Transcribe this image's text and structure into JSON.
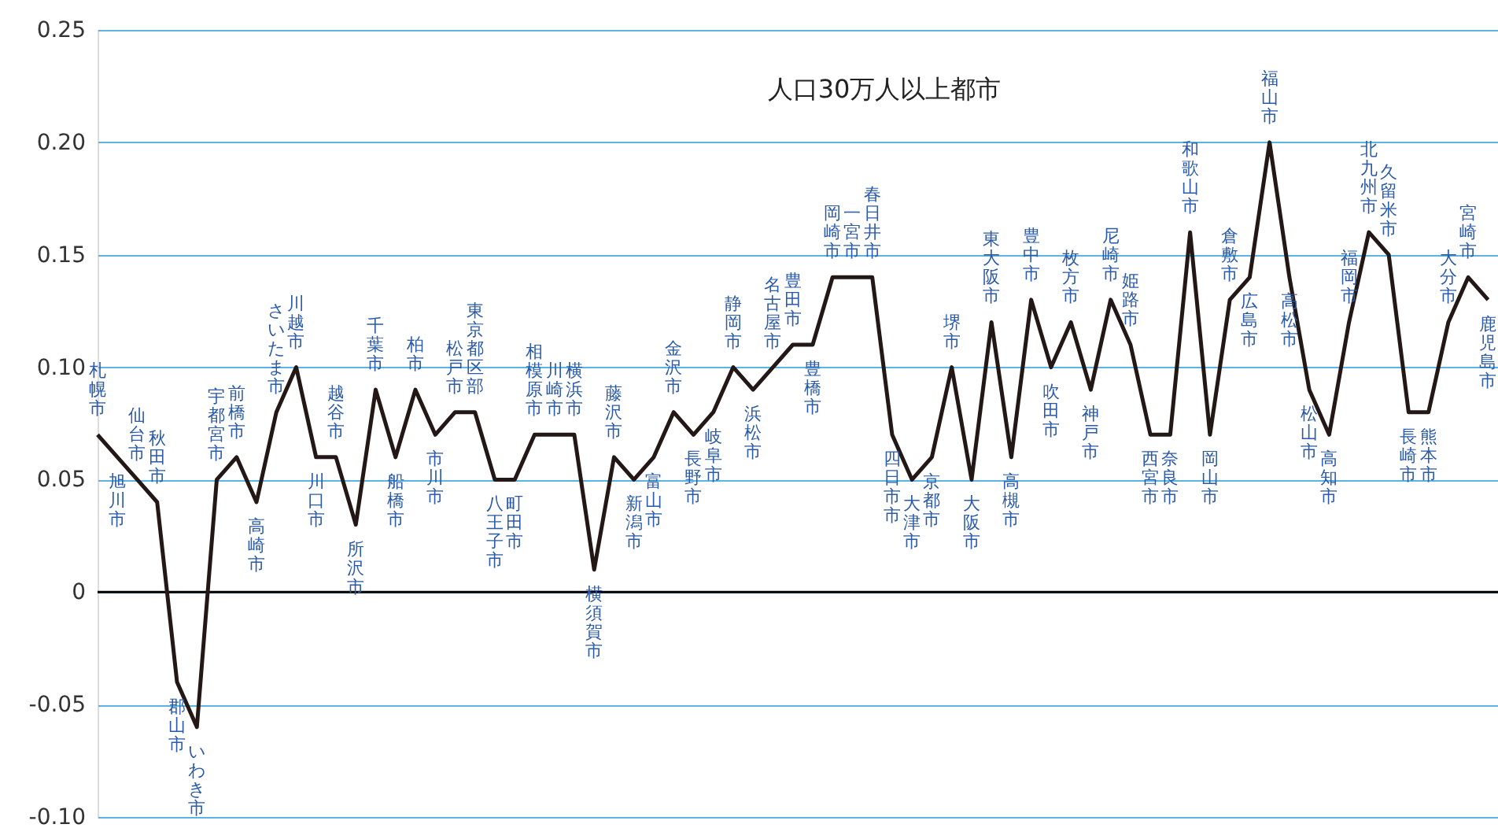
{
  "chart_data": {
    "type": "line",
    "title": "人口30万人以上都市",
    "categories": [
      "札幌市",
      "旭川市",
      "仙台市",
      "秋田市",
      "郡山市",
      "いわき市",
      "宇都宮市",
      "前橋市",
      "高崎市",
      "さいたま市",
      "川越市",
      "川口市",
      "越谷市",
      "所沢市",
      "千葉市",
      "船橋市",
      "柏市",
      "市川市",
      "松戸市",
      "東京都区部",
      "八王子市",
      "町田市",
      "相模原市",
      "川崎市",
      "横浜市",
      "横須賀市",
      "藤沢市",
      "新潟市",
      "富山市",
      "金沢市",
      "長野市",
      "岐阜市",
      "静岡市",
      "浜松市",
      "名古屋市",
      "豊田市",
      "豊橋市",
      "岡崎市",
      "一宮市",
      "春日井市",
      "四日市市",
      "大津市",
      "京都市",
      "堺市",
      "大阪市",
      "東大阪市",
      "高槻市",
      "豊中市",
      "吹田市",
      "枚方市",
      "神戸市",
      "尼崎市",
      "姫路市",
      "西宮市",
      "奈良市",
      "和歌山市",
      "岡山市",
      "倉敷市",
      "広島市",
      "福山市",
      "高松市",
      "松山市",
      "高知市",
      "福岡市",
      "北九州市",
      "久留米市",
      "長崎市",
      "熊本市",
      "大分市",
      "宮崎市",
      "鹿児島市"
    ],
    "series": [
      {
        "color": "#231815",
        "values": [
          0.07,
          0.06,
          0.05,
          0.04,
          -0.04,
          -0.06,
          0.05,
          0.06,
          0.04,
          0.08,
          0.1,
          0.06,
          0.06,
          0.03,
          0.09,
          0.06,
          0.09,
          0.07,
          0.08,
          0.08,
          0.05,
          0.05,
          0.07,
          0.07,
          0.07,
          0.01,
          0.06,
          0.05,
          0.06,
          0.08,
          0.07,
          0.08,
          0.1,
          0.09,
          0.1,
          0.11,
          0.11,
          0.14,
          0.14,
          0.14,
          0.07,
          0.05,
          0.06,
          0.1,
          0.05,
          0.12,
          0.06,
          0.13,
          0.1,
          0.12,
          0.09,
          0.13,
          0.11,
          0.07,
          0.07,
          0.16,
          0.07,
          0.13,
          0.14,
          0.2,
          0.14,
          0.09,
          0.07,
          0.12,
          0.16,
          0.15,
          0.08,
          0.08,
          0.12,
          0.14,
          0.13
        ]
      }
    ],
    "ylim": [
      -0.1,
      0.25
    ],
    "yticks": [
      {
        "value": -0.1,
        "label": "-0.10"
      },
      -0.05,
      0,
      0.05,
      {
        "value": 0.1,
        "label": "0.10"
      },
      0.15,
      {
        "value": 0.2,
        "label": "0.20"
      },
      0.25
    ],
    "grid": "y",
    "marker": "none",
    "line_style": "solid",
    "tick_labels": "y",
    "ref_lines": [
      {
        "axis": "y",
        "value": 0,
        "color": "#000000"
      }
    ]
  }
}
